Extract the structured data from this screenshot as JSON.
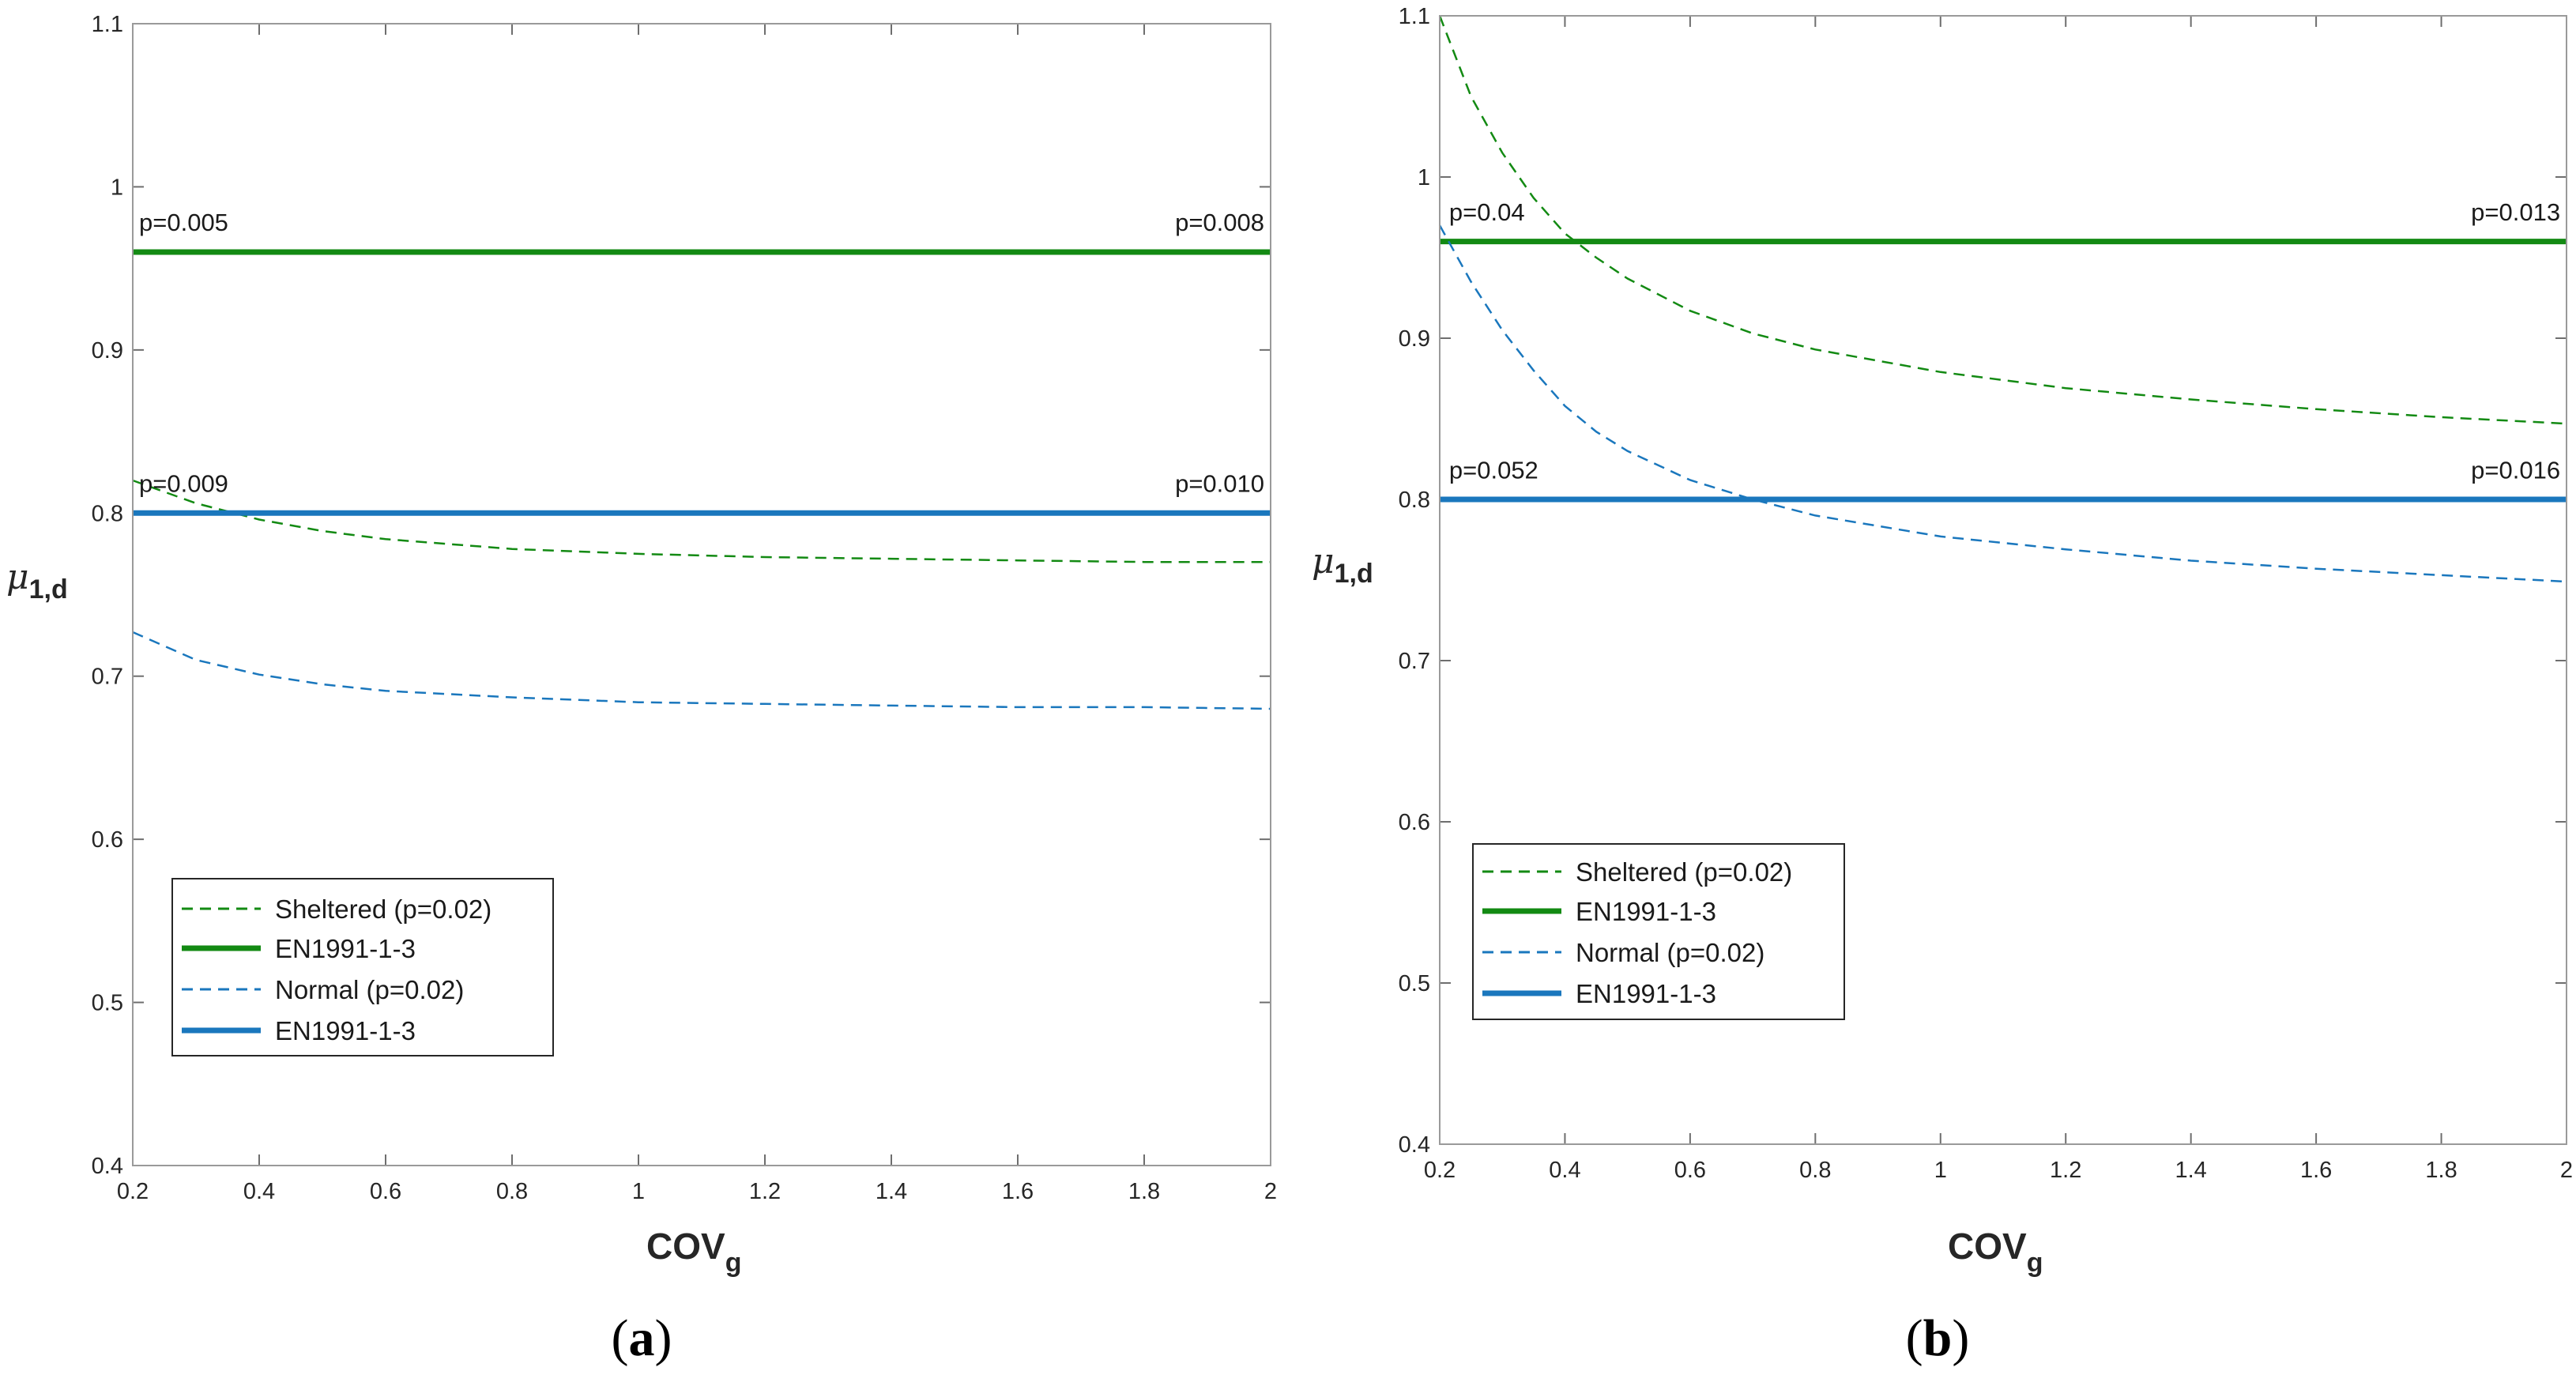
{
  "colors": {
    "green": "#138a13",
    "blue": "#1a77bd",
    "axis": "#262626",
    "frame": "#9a9a9a",
    "tick": "#6e6e6e"
  },
  "chart_data": [
    {
      "id": "a",
      "type": "line",
      "panel_label": "a",
      "xlabel": "COV",
      "xlabel_sub": "g",
      "ylabel": "μ",
      "ylabel_sub": "1,d",
      "xlim": [
        0.2,
        2
      ],
      "ylim": [
        0.4,
        1.1
      ],
      "xticks": [
        0.2,
        0.4,
        0.6,
        0.8,
        1,
        1.2,
        1.4,
        1.6,
        1.8,
        2
      ],
      "xtick_labels": [
        "0.2",
        "0.4",
        "0.6",
        "0.8",
        "1",
        "1.2",
        "1.4",
        "1.6",
        "1.8",
        "2"
      ],
      "yticks": [
        0.4,
        0.5,
        0.6,
        0.7,
        0.8,
        0.9,
        1,
        1.1
      ],
      "ytick_labels": [
        "0.4",
        "0.5",
        "0.6",
        "0.7",
        "0.8",
        "0.9",
        "1",
        "1.1"
      ],
      "series": [
        {
          "name": "Sheltered (p=0.02)",
          "style": "dashed",
          "color": "green",
          "x": [
            0.2,
            0.3,
            0.4,
            0.5,
            0.6,
            0.8,
            1.0,
            1.2,
            1.4,
            1.6,
            1.8,
            2.0
          ],
          "y": [
            0.82,
            0.806,
            0.796,
            0.789,
            0.784,
            0.778,
            0.775,
            0.773,
            0.772,
            0.771,
            0.77,
            0.77
          ]
        },
        {
          "name": "EN1991-1-3",
          "style": "solid",
          "color": "green",
          "x": [
            0.2,
            2.0
          ],
          "y": [
            0.96,
            0.96
          ]
        },
        {
          "name": "Normal (p=0.02)",
          "style": "dashed",
          "color": "blue",
          "x": [
            0.2,
            0.3,
            0.4,
            0.5,
            0.6,
            0.8,
            1.0,
            1.2,
            1.4,
            1.6,
            1.8,
            2.0
          ],
          "y": [
            0.727,
            0.71,
            0.701,
            0.695,
            0.691,
            0.687,
            0.684,
            0.683,
            0.682,
            0.681,
            0.681,
            0.68
          ]
        },
        {
          "name": "EN1991-1-3",
          "style": "solid",
          "color": "blue",
          "x": [
            0.2,
            2.0
          ],
          "y": [
            0.8,
            0.8
          ]
        }
      ],
      "annotations": [
        {
          "text": "p=0.005",
          "x": 0.21,
          "y": 0.973,
          "anchor": "start"
        },
        {
          "text": "p=0.008",
          "x": 1.99,
          "y": 0.973,
          "anchor": "end"
        },
        {
          "text": "p=0.009",
          "x": 0.21,
          "y": 0.813,
          "anchor": "start"
        },
        {
          "text": "p=0.010",
          "x": 1.99,
          "y": 0.813,
          "anchor": "end"
        }
      ],
      "legend_position": "bottom-left"
    },
    {
      "id": "b",
      "type": "line",
      "panel_label": "b",
      "xlabel": "COV",
      "xlabel_sub": "g",
      "ylabel": "μ",
      "ylabel_sub": "1,d",
      "xlim": [
        0.2,
        2
      ],
      "ylim": [
        0.4,
        1.1
      ],
      "xticks": [
        0.2,
        0.4,
        0.6,
        0.8,
        1,
        1.2,
        1.4,
        1.6,
        1.8,
        2
      ],
      "xtick_labels": [
        "0.2",
        "0.4",
        "0.6",
        "0.8",
        "1",
        "1.2",
        "1.4",
        "1.6",
        "1.8",
        "2"
      ],
      "yticks": [
        0.4,
        0.5,
        0.6,
        0.7,
        0.8,
        0.9,
        1,
        1.1
      ],
      "ytick_labels": [
        "0.4",
        "0.5",
        "0.6",
        "0.7",
        "0.8",
        "0.9",
        "1",
        "1.1"
      ],
      "series": [
        {
          "name": "Sheltered (p=0.02)",
          "style": "dashed",
          "color": "green",
          "x": [
            0.2,
            0.25,
            0.3,
            0.35,
            0.4,
            0.45,
            0.5,
            0.6,
            0.7,
            0.8,
            1.0,
            1.2,
            1.4,
            1.6,
            1.8,
            2.0
          ],
          "y": [
            1.1,
            1.05,
            1.015,
            0.987,
            0.965,
            0.95,
            0.937,
            0.917,
            0.903,
            0.893,
            0.879,
            0.869,
            0.862,
            0.856,
            0.851,
            0.847
          ]
        },
        {
          "name": "EN1991-1-3",
          "style": "solid",
          "color": "green",
          "x": [
            0.2,
            2.0
          ],
          "y": [
            0.96,
            0.96
          ]
        },
        {
          "name": "Normal (p=0.02)",
          "style": "dashed",
          "color": "blue",
          "x": [
            0.2,
            0.25,
            0.3,
            0.35,
            0.4,
            0.45,
            0.5,
            0.6,
            0.7,
            0.8,
            1.0,
            1.2,
            1.4,
            1.6,
            1.8,
            2.0
          ],
          "y": [
            0.97,
            0.935,
            0.905,
            0.88,
            0.858,
            0.842,
            0.83,
            0.812,
            0.8,
            0.79,
            0.777,
            0.769,
            0.762,
            0.757,
            0.753,
            0.749
          ]
        },
        {
          "name": "EN1991-1-3",
          "style": "solid",
          "color": "blue",
          "x": [
            0.2,
            2.0
          ],
          "y": [
            0.8,
            0.8
          ]
        }
      ],
      "annotations": [
        {
          "text": "p=0.04",
          "x": 0.215,
          "y": 0.973,
          "anchor": "start"
        },
        {
          "text": "p=0.013",
          "x": 1.99,
          "y": 0.973,
          "anchor": "end"
        },
        {
          "text": "p=0.052",
          "x": 0.215,
          "y": 0.813,
          "anchor": "start"
        },
        {
          "text": "p=0.016",
          "x": 1.99,
          "y": 0.813,
          "anchor": "end"
        }
      ],
      "legend_position": "bottom-left"
    }
  ]
}
